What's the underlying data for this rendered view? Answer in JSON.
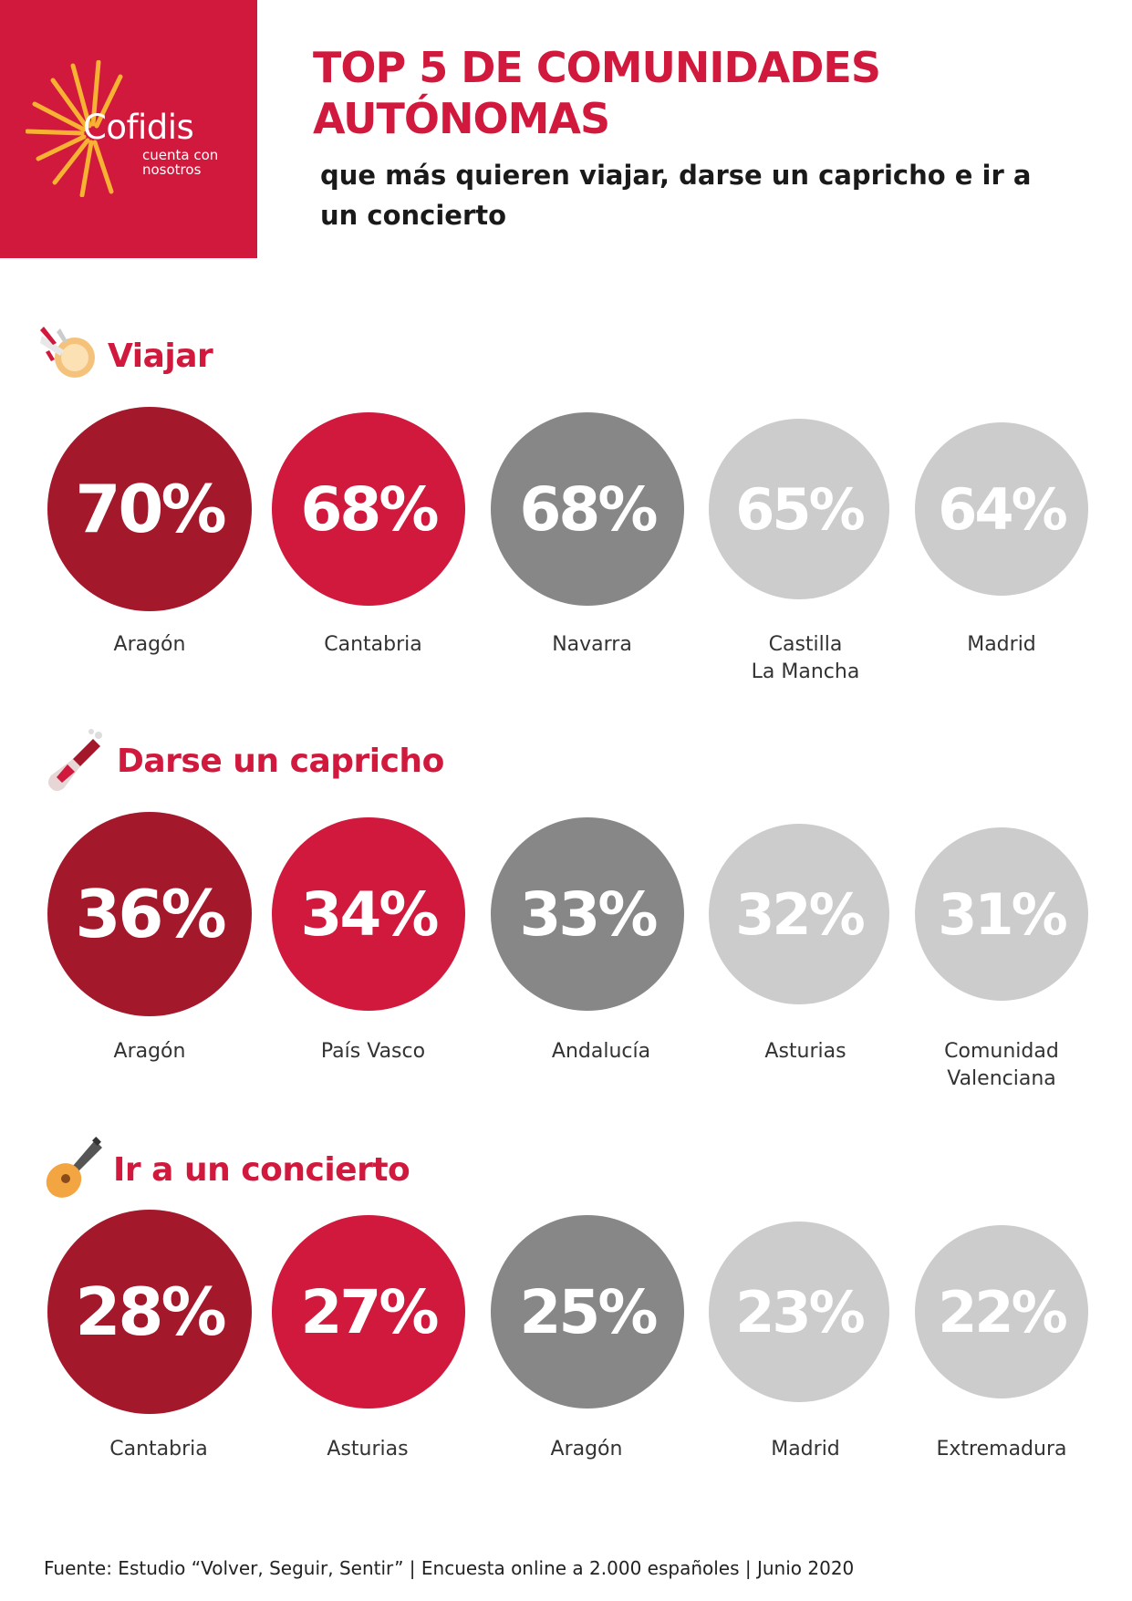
{
  "brand": {
    "name": "Cofidis",
    "tagline": "cuenta con nosotros",
    "color": "#d0193c",
    "sun_color": "#f7b233"
  },
  "header": {
    "title": "TOP 5 DE COMUNIDADES AUTÓNOMAS",
    "subtitle": "que más quieren viajar, darse un capricho e ir a un concierto"
  },
  "colors": {
    "rank1": "#a3182a",
    "rank2": "#d0193c",
    "rank3": "#878787",
    "rank4": "#cccccc",
    "rank5": "#cccccc"
  },
  "sections": [
    {
      "title": "Viajar",
      "icon": "plane-globe-icon",
      "items": [
        {
          "value": "70%",
          "region": "Aragón"
        },
        {
          "value": "68%",
          "region": "Cantabria"
        },
        {
          "value": "68%",
          "region": "Navarra"
        },
        {
          "value": "65%",
          "region": "Castilla\nLa Mancha"
        },
        {
          "value": "64%",
          "region": "Madrid"
        }
      ]
    },
    {
      "title": "Darse un capricho",
      "icon": "champagne-bottle-icon",
      "items": [
        {
          "value": "36%",
          "region": "Aragón"
        },
        {
          "value": "34%",
          "region": "País Vasco"
        },
        {
          "value": "33%",
          "region": "Andalucía"
        },
        {
          "value": "32%",
          "region": "Asturias"
        },
        {
          "value": "31%",
          "region": "Comunidad\nValenciana"
        }
      ]
    },
    {
      "title": "Ir a un concierto",
      "icon": "guitar-icon",
      "items": [
        {
          "value": "28%",
          "region": "Cantabria"
        },
        {
          "value": "27%",
          "region": "Asturias"
        },
        {
          "value": "25%",
          "region": "Aragón"
        },
        {
          "value": "23%",
          "region": "Madrid"
        },
        {
          "value": "22%",
          "region": "Extremadura"
        }
      ]
    }
  ],
  "footer": {
    "source": "Fuente: Estudio “Volver, Seguir, Sentir” | Encuesta online a 2.000 españoles | Junio 2020"
  }
}
